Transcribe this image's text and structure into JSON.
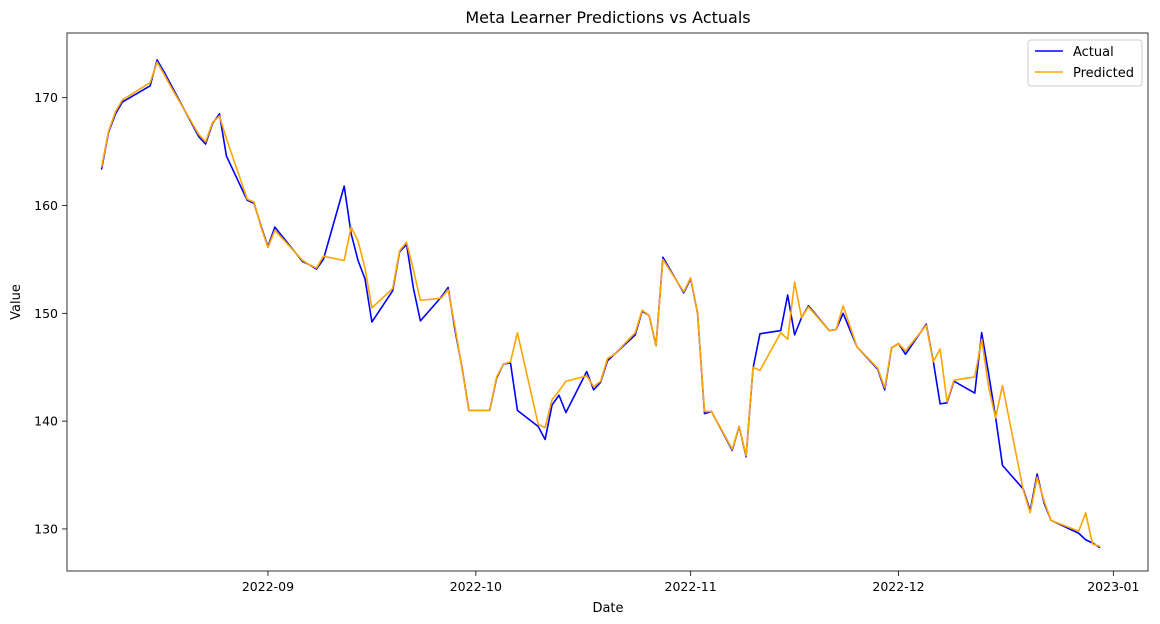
{
  "chart_data": {
    "type": "line",
    "title": "Meta Learner Predictions vs Actuals",
    "xlabel": "Date",
    "ylabel": "Value",
    "xlim": [
      "2022-08-03",
      "2023-01-06"
    ],
    "ylim": [
      126.1,
      176.0
    ],
    "x_ticks": [
      "2022-09-01",
      "2022-10-01",
      "2022-11-01",
      "2022-12-01",
      "2023-01-01"
    ],
    "x_tick_labels": [
      "2022-09",
      "2022-10",
      "2022-11",
      "2022-12",
      "2023-01"
    ],
    "y_ticks": [
      130,
      140,
      150,
      160,
      170
    ],
    "y_tick_labels": [
      "130",
      "140",
      "150",
      "160",
      "170"
    ],
    "grid": false,
    "legend_position": "top-right",
    "x": [
      "2022-08-08",
      "2022-08-09",
      "2022-08-10",
      "2022-08-11",
      "2022-08-15",
      "2022-08-16",
      "2022-08-17",
      "2022-08-18",
      "2022-08-19",
      "2022-08-22",
      "2022-08-23",
      "2022-08-24",
      "2022-08-25",
      "2022-08-26",
      "2022-08-29",
      "2022-08-30",
      "2022-08-31",
      "2022-09-01",
      "2022-09-02",
      "2022-09-06",
      "2022-09-07",
      "2022-09-08",
      "2022-09-09",
      "2022-09-12",
      "2022-09-13",
      "2022-09-14",
      "2022-09-15",
      "2022-09-16",
      "2022-09-19",
      "2022-09-20",
      "2022-09-21",
      "2022-09-22",
      "2022-09-23",
      "2022-09-26",
      "2022-09-27",
      "2022-09-28",
      "2022-09-29",
      "2022-09-30",
      "2022-10-03",
      "2022-10-04",
      "2022-10-05",
      "2022-10-06",
      "2022-10-07",
      "2022-10-10",
      "2022-10-11",
      "2022-10-12",
      "2022-10-13",
      "2022-10-14",
      "2022-10-17",
      "2022-10-18",
      "2022-10-19",
      "2022-10-20",
      "2022-10-21",
      "2022-10-24",
      "2022-10-25",
      "2022-10-26",
      "2022-10-27",
      "2022-10-28",
      "2022-10-31",
      "2022-11-01",
      "2022-11-02",
      "2022-11-03",
      "2022-11-04",
      "2022-11-07",
      "2022-11-08",
      "2022-11-09",
      "2022-11-10",
      "2022-11-11",
      "2022-11-14",
      "2022-11-15",
      "2022-11-16",
      "2022-11-17",
      "2022-11-18",
      "2022-11-21",
      "2022-11-22",
      "2022-11-23",
      "2022-11-25",
      "2022-11-28",
      "2022-11-29",
      "2022-11-30",
      "2022-12-01",
      "2022-12-02",
      "2022-12-05",
      "2022-12-06",
      "2022-12-07",
      "2022-12-08",
      "2022-12-09",
      "2022-12-12",
      "2022-12-13",
      "2022-12-14",
      "2022-12-15",
      "2022-12-16",
      "2022-12-19",
      "2022-12-20",
      "2022-12-21",
      "2022-12-22",
      "2022-12-23",
      "2022-12-27",
      "2022-12-28",
      "2022-12-29",
      "2022-12-30"
    ],
    "series": [
      {
        "name": "Actual",
        "color": "#0000ff",
        "values": [
          163.4,
          166.8,
          168.5,
          169.6,
          171.1,
          173.5,
          172.4,
          171.2,
          170.0,
          166.4,
          165.7,
          167.6,
          168.5,
          164.6,
          160.5,
          160.2,
          158.1,
          156.2,
          158.0,
          154.8,
          154.5,
          154.1,
          155.0,
          161.8,
          157.4,
          154.9,
          153.2,
          149.2,
          152.1,
          155.7,
          156.4,
          152.3,
          149.3,
          151.5,
          152.4,
          148.4,
          145.0,
          141.0,
          141.0,
          144.0,
          145.3,
          145.4,
          141.0,
          139.5,
          138.3,
          141.5,
          142.4,
          140.8,
          144.6,
          142.9,
          143.6,
          145.6,
          146.2,
          148.0,
          150.2,
          149.8,
          147.0,
          155.2,
          151.9,
          153.2,
          150.0,
          140.7,
          140.9,
          137.3,
          139.5,
          136.7,
          144.9,
          148.1,
          148.4,
          151.7,
          148.0,
          149.6,
          150.7,
          148.4,
          148.5,
          150.0,
          146.9,
          144.8,
          142.9,
          146.8,
          147.2,
          146.2,
          149.0,
          145.6,
          141.6,
          141.7,
          143.7,
          142.6,
          148.2,
          144.4,
          140.4,
          135.9,
          133.7,
          131.7,
          135.1,
          132.4,
          130.8,
          129.6,
          129.0,
          128.7,
          128.3
        ]
      },
      {
        "name": "Predicted",
        "color": "#ffa500",
        "values": [
          163.6,
          166.9,
          168.7,
          169.8,
          171.4,
          173.3,
          172.2,
          171.0,
          169.9,
          166.6,
          165.9,
          167.7,
          168.3,
          166.2,
          160.6,
          160.3,
          158.0,
          156.1,
          157.7,
          154.9,
          154.5,
          154.2,
          155.3,
          154.9,
          158.0,
          156.7,
          154.2,
          150.5,
          152.3,
          155.8,
          156.6,
          154.0,
          151.2,
          151.4,
          152.2,
          148.7,
          144.9,
          141.0,
          141.0,
          144.1,
          145.3,
          145.5,
          148.2,
          139.7,
          139.4,
          142.0,
          142.8,
          143.7,
          144.2,
          143.2,
          143.7,
          145.8,
          146.2,
          148.2,
          150.3,
          149.8,
          147.0,
          155.0,
          152.0,
          153.3,
          150.0,
          140.9,
          140.9,
          137.4,
          139.5,
          136.8,
          145.0,
          144.7,
          148.2,
          147.6,
          152.9,
          149.6,
          150.6,
          148.4,
          148.5,
          150.7,
          146.9,
          144.9,
          143.1,
          146.8,
          147.2,
          146.5,
          148.9,
          145.5,
          146.7,
          141.8,
          143.8,
          144.1,
          147.6,
          143.2,
          140.3,
          143.3,
          133.6,
          131.5,
          134.8,
          132.6,
          130.8,
          129.8,
          131.5,
          128.6,
          128.4
        ]
      }
    ]
  }
}
